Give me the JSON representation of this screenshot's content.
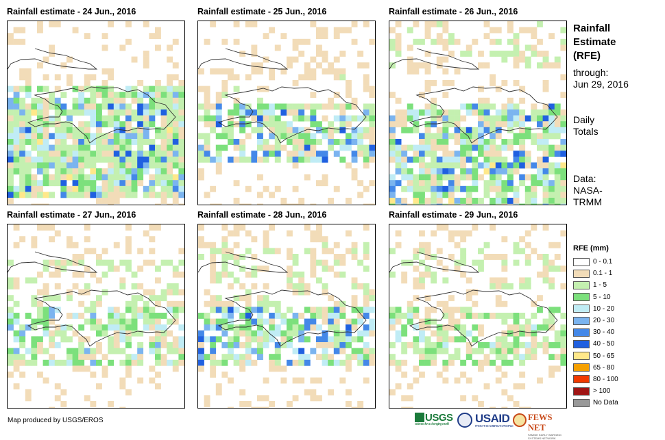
{
  "panels": [
    {
      "title": "Rainfall estimate - 24 Jun., 2016",
      "seed": 24,
      "bands": [
        [
          5,
          10,
          1.0
        ],
        [
          6,
          6,
          0.25
        ],
        [
          4,
          9,
          0.7
        ]
      ]
    },
    {
      "title": "Rainfall estimate - 25 Jun., 2016",
      "seed": 25,
      "bands": [
        [
          5,
          8,
          0.8
        ],
        [
          3,
          4,
          0.2
        ]
      ]
    },
    {
      "title": "Rainfall estimate - 26 Jun., 2016",
      "seed": 26,
      "bands": [
        [
          5,
          9,
          0.8
        ],
        [
          9,
          11,
          0.9
        ],
        [
          0,
          2,
          0.3
        ]
      ]
    },
    {
      "title": "Rainfall estimate - 27 Jun., 2016",
      "seed": 27,
      "bands": [
        [
          5,
          8,
          0.7
        ],
        [
          2,
          5,
          0.35
        ]
      ]
    },
    {
      "title": "Rainfall estimate - 28 Jun., 2016",
      "seed": 28,
      "bands": [
        [
          5,
          8,
          0.8
        ],
        [
          1,
          4,
          0.35
        ]
      ]
    },
    {
      "title": "Rainfall estimate - 29 Jun., 2016",
      "seed": 29,
      "bands": [
        [
          5,
          8,
          0.6
        ],
        [
          1,
          3,
          0.3
        ]
      ]
    }
  ],
  "sidebar": {
    "title_line1": "Rainfall",
    "title_line2": "Estimate",
    "title_line3": "(RFE)",
    "through_label": "through:",
    "through_date": "Jun 29, 2016",
    "totals_line1": "Daily",
    "totals_line2": "Totals",
    "data_line1": "Data:",
    "data_line2": "NASA-",
    "data_line3": "TRMM"
  },
  "legend": {
    "title": "RFE (mm)",
    "items": [
      {
        "label": "0 - 0.1",
        "color": "#ffffff"
      },
      {
        "label": "0.1 - 1",
        "color": "#f2dcb8"
      },
      {
        "label": "1 - 5",
        "color": "#c4f0b0"
      },
      {
        "label": "5 - 10",
        "color": "#7ce07c"
      },
      {
        "label": "10 - 20",
        "color": "#c0ecf5"
      },
      {
        "label": "20 - 30",
        "color": "#7bb4ef"
      },
      {
        "label": "30 - 40",
        "color": "#4488e8"
      },
      {
        "label": "40 - 50",
        "color": "#2060e0"
      },
      {
        "label": "50 - 65",
        "color": "#ffe88a"
      },
      {
        "label": "65 - 80",
        "color": "#f5a000"
      },
      {
        "label": "80 - 100",
        "color": "#f23a00"
      },
      {
        "label": "> 100",
        "color": "#a01515"
      },
      {
        "label": "No Data",
        "color": "#999999"
      }
    ]
  },
  "credit": "Map produced by USGS/EROS",
  "logos": {
    "usgs": "USGS",
    "usgs_tagline": "science for a changing world",
    "usaid": "USAID",
    "usaid_tagline": "FROM THE AMERICAN PEOPLE",
    "fewsnet": "FEWS NET",
    "fewsnet_tagline": "FAMINE EARLY WARNING SYSTEMS NETWORK"
  }
}
